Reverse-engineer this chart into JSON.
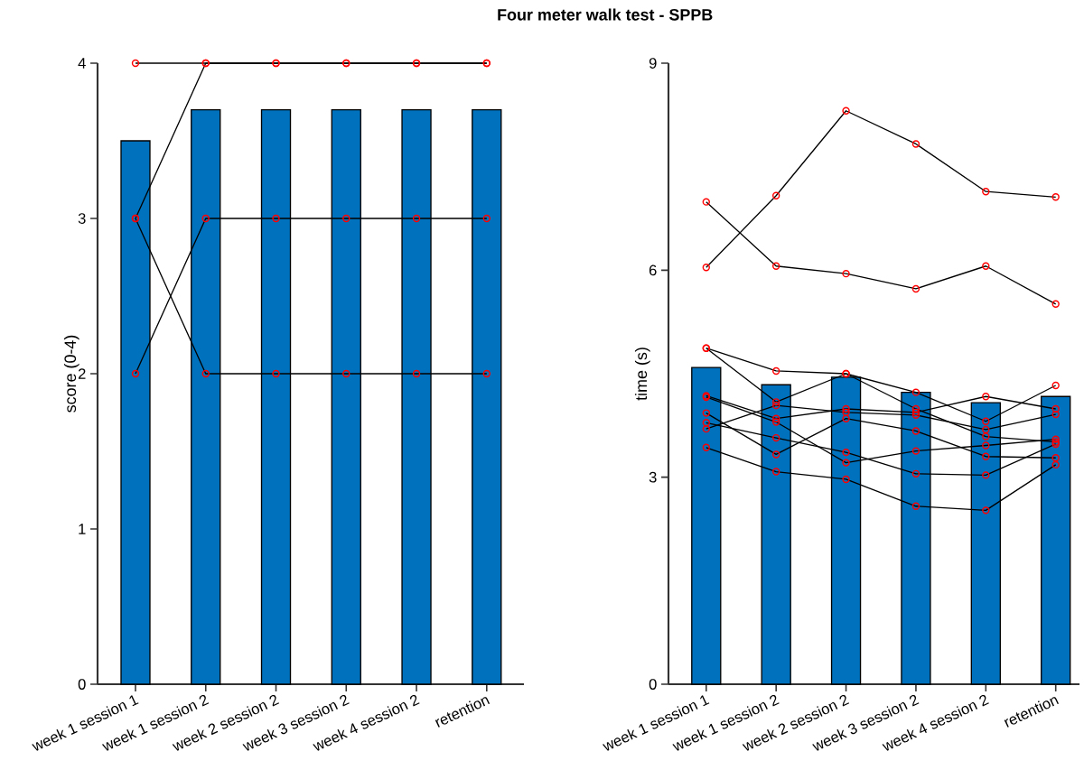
{
  "chart_data": [
    {
      "type": "bar",
      "title": "Four meter walk test - SPPB",
      "ylabel": "score (0-4)",
      "categories": [
        "week 1 session 1",
        "week 1 session 2",
        "week 2 session 2",
        "week 3 session 2",
        "week 4 session 2",
        "retention"
      ],
      "ylim": [
        0,
        4
      ],
      "yticks": [
        0,
        1,
        2,
        3,
        4
      ],
      "marker": "circle",
      "series": [
        {
          "color": "#0072bd",
          "values": [
            3.5,
            3.7,
            3.7,
            3.7,
            3.7,
            3.7
          ]
        },
        {
          "type": "line",
          "color": "#000000",
          "values": [
            2,
            3,
            3,
            3,
            3,
            3
          ]
        },
        {
          "type": "line",
          "color": "#000000",
          "values": [
            3,
            2,
            2,
            2,
            2,
            2
          ]
        },
        {
          "type": "line",
          "color": "#000000",
          "values": [
            3,
            4,
            4,
            4,
            4,
            4
          ]
        },
        {
          "type": "line",
          "color": "#000000",
          "values": [
            4,
            4,
            4,
            4,
            4,
            4
          ]
        }
      ]
    },
    {
      "type": "bar",
      "ylabel": "time (s)",
      "categories": [
        "week 1 session 1",
        "week 1 session 2",
        "week 2 session 2",
        "week 3 session 2",
        "week 4 session 2",
        "retention"
      ],
      "ylim": [
        0,
        9
      ],
      "yticks": [
        0,
        3,
        6,
        9
      ],
      "marker": "circle",
      "series": [
        {
          "color": "#0072bd",
          "values": [
            4.59,
            4.34,
            4.45,
            4.23,
            4.08,
            4.17
          ]
        },
        {
          "type": "line",
          "color": "#000000",
          "values": [
            6.04,
            7.08,
            8.31,
            7.83,
            7.14,
            7.06
          ]
        },
        {
          "type": "line",
          "color": "#000000",
          "values": [
            6.99,
            6.06,
            5.95,
            5.73,
            6.06,
            5.51
          ]
        },
        {
          "type": "line",
          "color": "#000000",
          "values": [
            4.87,
            4.54,
            4.5,
            4.23,
            3.81,
            4.33
          ]
        },
        {
          "type": "line",
          "color": "#000000",
          "values": [
            4.87,
            4.09,
            4.5,
            3.99,
            3.59,
            3.51
          ]
        },
        {
          "type": "line",
          "color": "#000000",
          "values": [
            4.18,
            3.85,
            3.99,
            3.94,
            4.17,
            3.99
          ]
        },
        {
          "type": "line",
          "color": "#000000",
          "values": [
            4.16,
            3.8,
            3.21,
            3.38,
            3.46,
            3.55
          ]
        },
        {
          "type": "line",
          "color": "#000000",
          "values": [
            3.93,
            3.33,
            3.85,
            3.67,
            3.3,
            3.28
          ]
        },
        {
          "type": "line",
          "color": "#000000",
          "values": [
            3.79,
            3.57,
            3.36,
            3.05,
            3.03,
            3.48
          ]
        },
        {
          "type": "line",
          "color": "#000000",
          "values": [
            3.7,
            4.04,
            3.94,
            3.9,
            3.69,
            3.91
          ]
        },
        {
          "type": "line",
          "color": "#000000",
          "values": [
            3.43,
            3.08,
            2.97,
            2.58,
            2.52,
            3.18
          ]
        }
      ]
    }
  ]
}
